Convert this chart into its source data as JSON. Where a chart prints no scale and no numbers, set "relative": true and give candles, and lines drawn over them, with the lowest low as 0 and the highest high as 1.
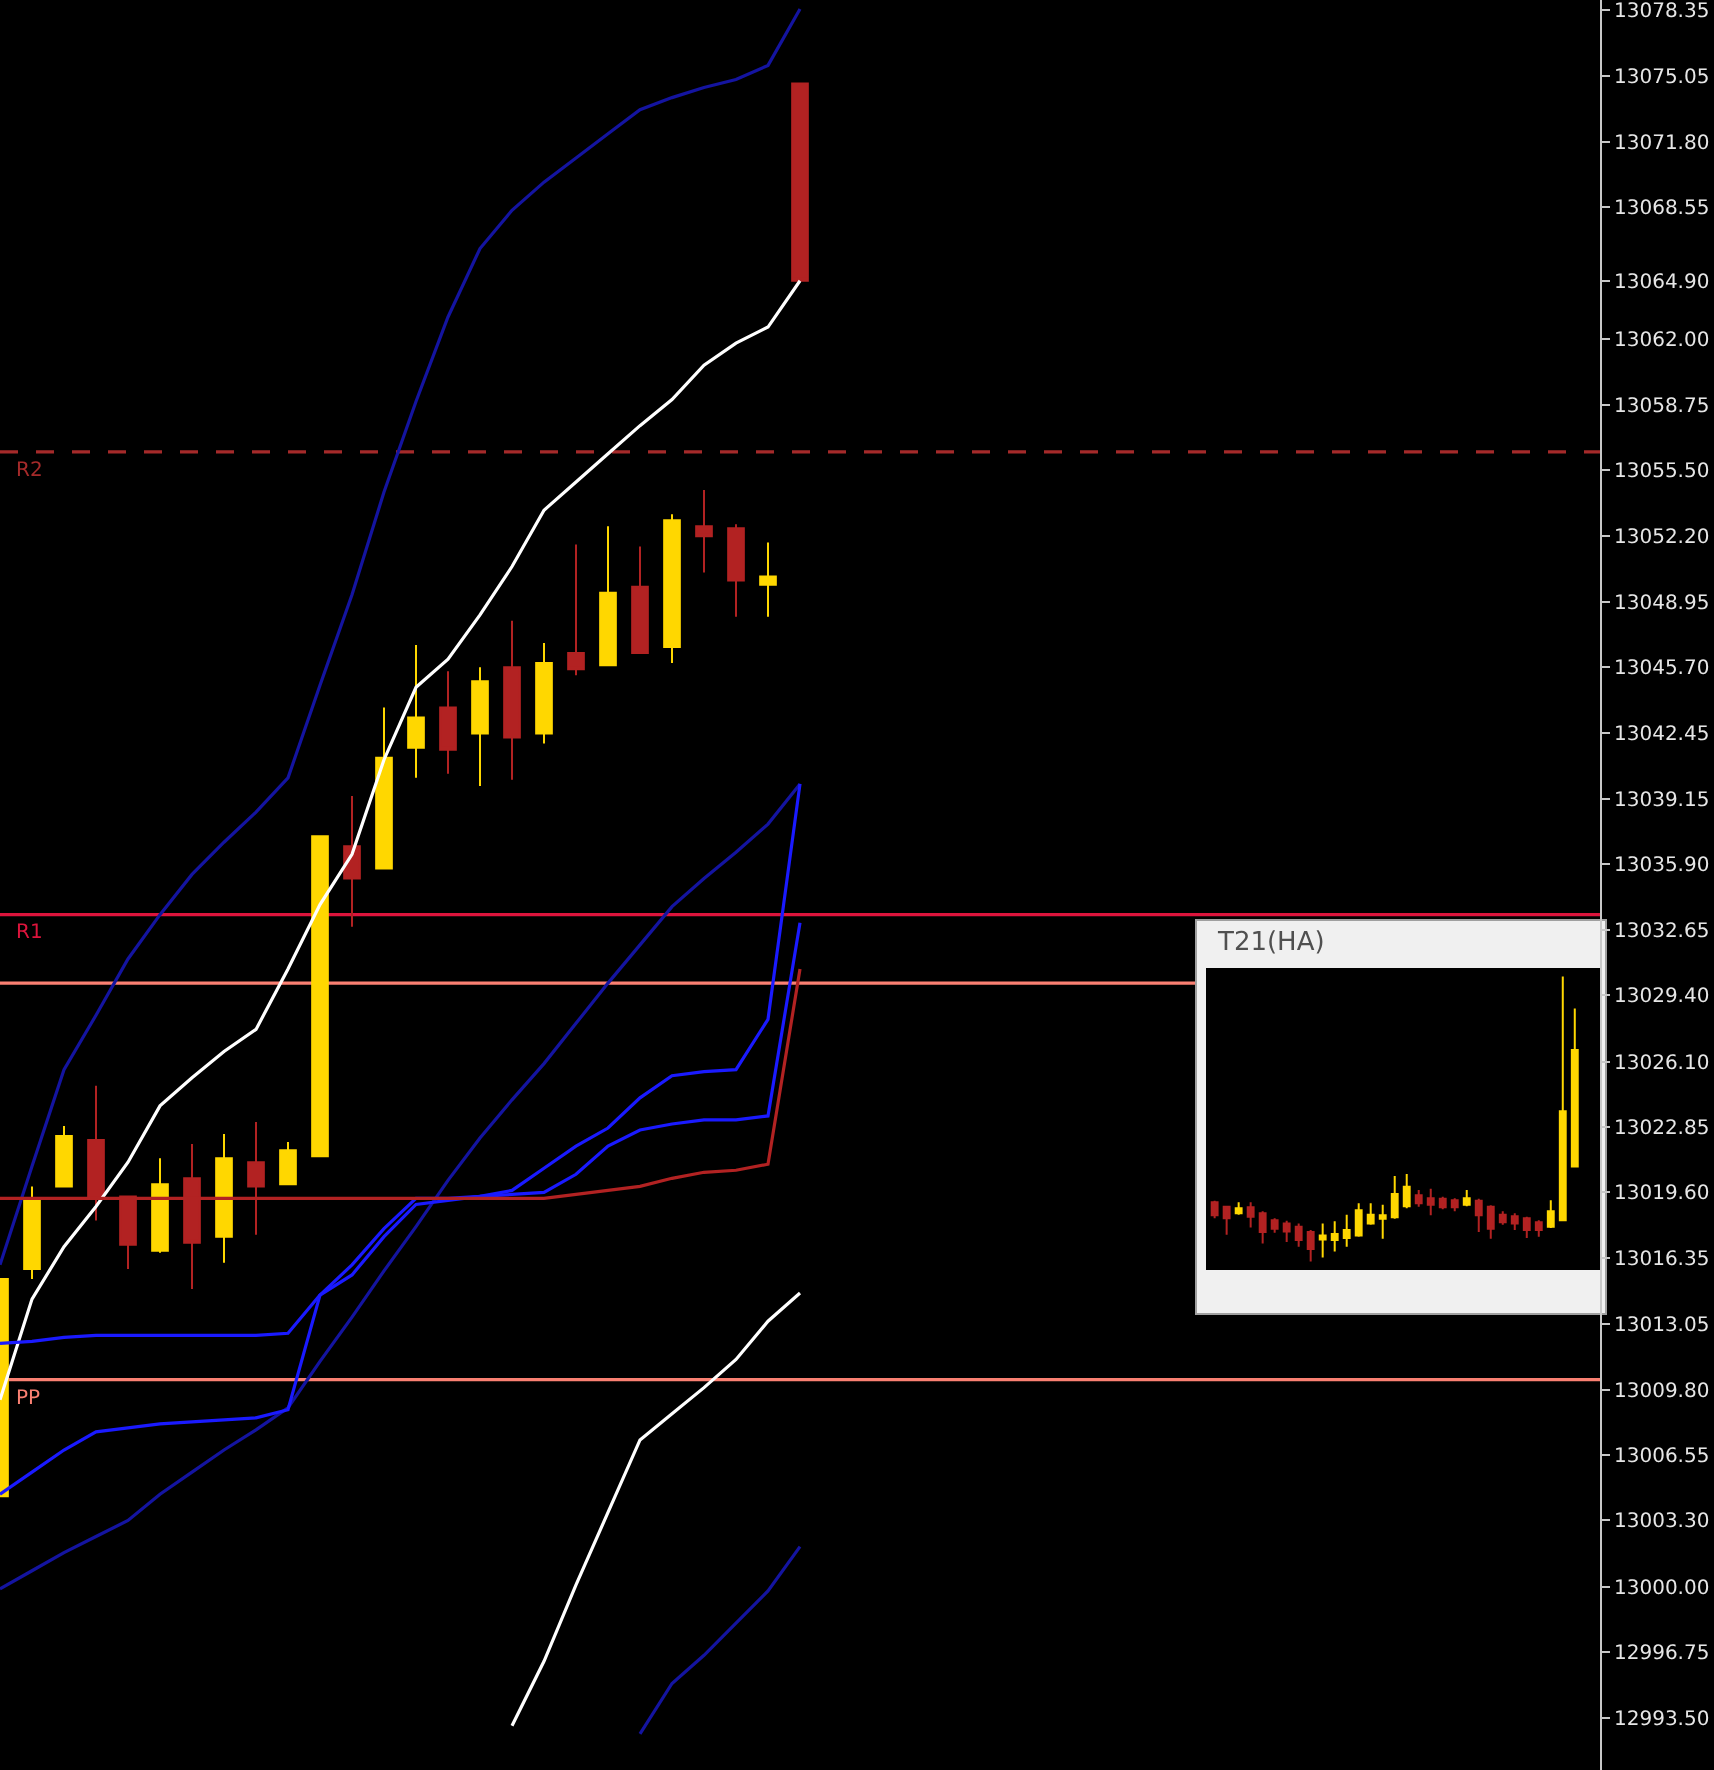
{
  "chart_data": [
    {
      "type": "candlestick",
      "categories": [
        null,
        null,
        null,
        null,
        null,
        null,
        null,
        null,
        null,
        null,
        null,
        null,
        null,
        null,
        null,
        null,
        null,
        null,
        null,
        null,
        null,
        null,
        null,
        null,
        null,
        null,
        null,
        null,
        null,
        null,
        null,
        null,
        null,
        null,
        null,
        null,
        null,
        null,
        null,
        null,
        null,
        null,
        null,
        null,
        null,
        null,
        null,
        null,
        null,
        null,
        null
      ],
      "ohlc": [
        [
          13004.5,
          13015.3,
          13004.5,
          13015.3
        ],
        [
          13015.8,
          13019.9,
          13015.3,
          13019.2
        ],
        [
          13019.9,
          13022.9,
          13019.9,
          13022.4
        ],
        [
          13022.2,
          13024.9,
          13018.2,
          13019.4
        ],
        [
          13019.4,
          13019.4,
          13015.8,
          13017.0
        ],
        [
          13016.7,
          13021.3,
          13016.6,
          13020.0
        ],
        [
          13020.3,
          13022.0,
          13014.8,
          13017.1
        ],
        [
          13017.4,
          13022.5,
          13016.1,
          13021.3
        ],
        [
          13021.1,
          13023.1,
          13017.5,
          13019.9
        ],
        [
          13020.0,
          13022.1,
          13020.0,
          13021.7
        ],
        [
          13021.4,
          13037.3,
          13021.4,
          13037.3
        ],
        [
          13036.8,
          13039.3,
          13032.8,
          13035.2
        ],
        [
          13035.7,
          13043.7,
          13035.7,
          13041.2
        ],
        [
          13041.7,
          13046.8,
          13040.2,
          13043.2
        ],
        [
          13043.7,
          13045.5,
          13040.4,
          13041.6
        ],
        [
          13042.4,
          13045.7,
          13039.8,
          13045.0
        ],
        [
          13045.7,
          13048.0,
          13040.1,
          13042.2
        ],
        [
          13042.4,
          13046.9,
          13041.9,
          13045.9
        ],
        [
          13046.4,
          13051.8,
          13045.3,
          13045.6
        ],
        [
          13045.8,
          13052.7,
          13045.8,
          13049.4
        ],
        [
          13049.7,
          13051.7,
          13046.4,
          13046.4
        ],
        [
          13046.7,
          13053.3,
          13045.9,
          13053.0
        ],
        [
          13052.7,
          13054.5,
          13050.4,
          13052.2
        ],
        [
          13052.6,
          13052.8,
          13048.2,
          13050.0
        ],
        [
          13049.8,
          13051.9,
          13048.2,
          13050.2
        ],
        [
          13074.7,
          13074.7,
          13064.9,
          13064.9
        ],
        null,
        null,
        null,
        null,
        null,
        null,
        null,
        null,
        null,
        null,
        null,
        null,
        null,
        null,
        null,
        null,
        null,
        null,
        null,
        null,
        null,
        null,
        null,
        null,
        null
      ],
      "colors": [
        "#ffd700",
        "#ffd700",
        "#ffd700",
        "#b22222",
        "#b22222",
        "#ffd700",
        "#b22222",
        "#ffd700",
        "#b22222",
        "#ffd700",
        "#ffd700",
        "#b22222",
        "#ffd700",
        "#ffd700",
        "#b22222",
        "#ffd700",
        "#b22222",
        "#ffd700",
        "#b22222",
        "#ffd700",
        "#b22222",
        "#ffd700",
        "#b22222",
        "#b22222",
        "#ffd700",
        "#b22222",
        null,
        null,
        null,
        null,
        null,
        null,
        null,
        null,
        null,
        null,
        null,
        null,
        null,
        null,
        null,
        null,
        null,
        null,
        null,
        null,
        null,
        null,
        null,
        null,
        null
      ],
      "series": [
        {
          "type": "line",
          "color": "#1414a0",
          "values": [
            13016.0,
            13020.9,
            13025.7,
            13028.4,
            13031.2,
            13033.4,
            13035.4,
            13037.0,
            13038.5,
            13040.2,
            13044.8,
            13049.3,
            13054.4,
            13058.9,
            13063.1,
            13066.5,
            13068.4,
            13069.8,
            13071.0,
            13072.2,
            13073.4,
            13074.0,
            13074.5,
            13074.9,
            13075.6,
            13078.4,
            null,
            null,
            null,
            null,
            null,
            null,
            null,
            null,
            null,
            null,
            null,
            null,
            null,
            null,
            null,
            null,
            null,
            null,
            null,
            null,
            null,
            null,
            null,
            null,
            null
          ]
        },
        {
          "type": "line",
          "color": "#1414a0",
          "values": [
            12999.9,
            13000.8,
            13001.7,
            13002.5,
            13003.3,
            13004.6,
            13005.7,
            13006.8,
            13007.8,
            13008.9,
            13011.2,
            13013.4,
            13015.7,
            13017.9,
            13020.2,
            13022.3,
            13024.2,
            13026.0,
            13028.0,
            13030.0,
            13031.9,
            13033.8,
            13035.2,
            13036.5,
            13037.9,
            13039.9,
            null,
            null,
            null,
            null,
            null,
            null,
            null,
            null,
            null,
            null,
            null,
            null,
            null,
            null,
            null,
            null,
            null,
            null,
            null,
            null,
            null,
            null,
            null,
            null,
            null
          ]
        },
        {
          "type": "line",
          "color": "#1414a0",
          "values": [
            null,
            null,
            null,
            null,
            null,
            null,
            null,
            null,
            null,
            null,
            null,
            null,
            null,
            null,
            null,
            null,
            null,
            null,
            null,
            null,
            12992.7,
            12995.2,
            12996.6,
            12998.2,
            12999.8,
            13002.0,
            null,
            null,
            null,
            null,
            null,
            null,
            null,
            null,
            null,
            null,
            null,
            null,
            null,
            null,
            null,
            null,
            null,
            null,
            null,
            null,
            null,
            null,
            null,
            null,
            null
          ]
        },
        {
          "type": "line",
          "color": "#ffffff",
          "values": [
            13009.3,
            13014.3,
            13016.9,
            13018.9,
            13021.1,
            13023.9,
            13025.3,
            13026.6,
            13027.7,
            13030.7,
            13033.9,
            13036.4,
            13041.1,
            13044.7,
            13046.1,
            13048.3,
            13050.7,
            13053.5,
            13054.9,
            13056.3,
            13057.7,
            13059.0,
            13060.7,
            13061.8,
            13062.6,
            13064.9,
            null,
            null,
            null,
            null,
            null,
            null,
            null,
            null,
            null,
            null,
            null,
            null,
            null,
            null,
            null,
            null,
            null,
            null,
            null,
            null,
            null,
            null,
            null,
            null,
            null
          ]
        },
        {
          "type": "line",
          "color": "#ffffff",
          "values": [
            null,
            null,
            null,
            null,
            null,
            null,
            null,
            null,
            null,
            null,
            null,
            null,
            null,
            null,
            null,
            null,
            12993.1,
            12996.3,
            13000.1,
            13003.7,
            13007.3,
            13008.6,
            13009.9,
            13011.3,
            13013.2,
            13014.6,
            null,
            null,
            null,
            null,
            null,
            null,
            null,
            null,
            null,
            null,
            null,
            null,
            null,
            null,
            null,
            null,
            null,
            null,
            null,
            null,
            null,
            null,
            null,
            null,
            null
          ]
        },
        {
          "type": "line",
          "color": "#1a1aff",
          "values": [
            13012.1,
            13012.2,
            13012.4,
            13012.5,
            13012.5,
            13012.5,
            13012.5,
            13012.5,
            13012.5,
            13012.6,
            13014.5,
            13015.5,
            13017.4,
            13019.0,
            13019.2,
            13019.4,
            13019.5,
            13019.6,
            13020.5,
            13021.9,
            13022.7,
            13023.0,
            13023.2,
            13023.2,
            13023.4,
            13033.0,
            null,
            null,
            null,
            null,
            null,
            null,
            null,
            null,
            null,
            null,
            null,
            null,
            null,
            null,
            null,
            null,
            null,
            null,
            null,
            null,
            null,
            null,
            null,
            null,
            null
          ]
        },
        {
          "type": "line",
          "color": "#1a1aff",
          "values": [
            13004.6,
            13005.7,
            13006.8,
            13007.7,
            13007.9,
            13008.1,
            13008.2,
            13008.3,
            13008.4,
            13008.8,
            13014.5,
            13016.0,
            13017.8,
            13019.3,
            13019.3,
            13019.4,
            13019.7,
            13020.8,
            13021.9,
            13022.8,
            13024.3,
            13025.4,
            13025.6,
            13025.7,
            13028.2,
            13039.9,
            null,
            null,
            null,
            null,
            null,
            null,
            null,
            null,
            null,
            null,
            null,
            null,
            null,
            null,
            null,
            null,
            null,
            null,
            null,
            null,
            null,
            null,
            null,
            null,
            null
          ]
        },
        {
          "type": "line",
          "color": "#b22222",
          "values": [
            13019.3,
            13019.3,
            13019.3,
            13019.3,
            13019.3,
            13019.3,
            13019.3,
            13019.3,
            13019.3,
            13019.3,
            13019.3,
            13019.3,
            13019.3,
            13019.3,
            13019.3,
            13019.3,
            13019.3,
            13019.3,
            13019.5,
            13019.7,
            13019.9,
            13020.3,
            13020.6,
            13020.7,
            13021.0,
            13030.7,
            null,
            null,
            null,
            null,
            null,
            null,
            null,
            null,
            null,
            null,
            null,
            null,
            null,
            null,
            null,
            null,
            null,
            null,
            null,
            null,
            null,
            null,
            null,
            null,
            null
          ]
        }
      ],
      "ref_lines": [
        {
          "axis": "y",
          "value": 13056.4,
          "label": "R2",
          "color": "#a52a2a",
          "line_style": "dashed"
        },
        {
          "axis": "y",
          "value": 13033.4,
          "label": "R1",
          "color": "#dc143c",
          "line_style": "solid"
        },
        {
          "axis": "y",
          "value": 13030.0,
          "label": null,
          "color": "#fa8072",
          "line_style": "solid"
        },
        {
          "axis": "y",
          "value": 13010.3,
          "label": "PP",
          "color": "#fa8072",
          "line_style": "solid"
        }
      ],
      "ylim": [
        12990.9,
        13078.85
      ],
      "yticks": [
        {
          "value": 13078.35,
          "label": "13078.35"
        },
        {
          "value": 13075.05,
          "label": "13075.05"
        },
        {
          "value": 13071.8,
          "label": "13071.80"
        },
        {
          "value": 13068.55,
          "label": "13068.55"
        },
        {
          "value": 13064.9,
          "label": "13064.90"
        },
        {
          "value": 13062.0,
          "label": "13062.00"
        },
        {
          "value": 13058.75,
          "label": "13058.75"
        },
        {
          "value": 13055.5,
          "label": "13055.50"
        },
        {
          "value": 13052.2,
          "label": "13052.20"
        },
        {
          "value": 13048.95,
          "label": "13048.95"
        },
        {
          "value": 13045.7,
          "label": "13045.70"
        },
        {
          "value": 13042.45,
          "label": "13042.45"
        },
        {
          "value": 13039.15,
          "label": "13039.15"
        },
        {
          "value": 13035.9,
          "label": "13035.90"
        },
        {
          "value": 13032.65,
          "label": "13032.65"
        },
        {
          "value": 13029.4,
          "label": "13029.40"
        },
        {
          "value": 13026.1,
          "label": "13026.10"
        },
        {
          "value": 13022.85,
          "label": "13022.85"
        },
        {
          "value": 13019.6,
          "label": "13019.60"
        },
        {
          "value": 13016.35,
          "label": "13016.35"
        },
        {
          "value": 13013.05,
          "label": "13013.05"
        },
        {
          "value": 13009.8,
          "label": "13009.80"
        },
        {
          "value": 13006.55,
          "label": "13006.55"
        },
        {
          "value": 13003.3,
          "label": "13003.30"
        },
        {
          "value": 13000.0,
          "label": "13000.00"
        },
        {
          "value": 12996.75,
          "label": "12996.75"
        },
        {
          "value": 12993.5,
          "label": "12993.50"
        }
      ],
      "tick_labels": "y"
    },
    {
      "type": "candlestick",
      "title": "T21(HA)",
      "relative": true,
      "tick_labels": false,
      "categories": [
        null,
        null,
        null,
        null,
        null,
        null,
        null,
        null,
        null,
        null,
        null,
        null,
        null,
        null,
        null,
        null,
        null,
        null,
        null,
        null,
        null,
        null,
        null,
        null,
        null,
        null,
        null,
        null,
        null,
        null,
        null
      ],
      "ohlc": [
        [
          0.208,
          0.213,
          0.152,
          0.162
        ],
        [
          0.192,
          0.192,
          0.094,
          0.152
        ],
        [
          0.169,
          0.208,
          0.164,
          0.187
        ],
        [
          0.19,
          0.208,
          0.119,
          0.157
        ],
        [
          0.169,
          0.176,
          0.063,
          0.103
        ],
        [
          0.145,
          0.152,
          0.101,
          0.115
        ],
        [
          0.133,
          0.143,
          0.068,
          0.105
        ],
        [
          0.122,
          0.133,
          0.052,
          0.075
        ],
        [
          0.103,
          0.11,
          0.0,
          0.044
        ],
        [
          0.077,
          0.133,
          0.014,
          0.091
        ],
        [
          0.075,
          0.141,
          0.035,
          0.096
        ],
        [
          0.082,
          0.164,
          0.052,
          0.11
        ],
        [
          0.091,
          0.204,
          0.087,
          0.18
        ],
        [
          0.133,
          0.204,
          0.129,
          0.164
        ],
        [
          0.15,
          0.199,
          0.08,
          0.162
        ],
        [
          0.155,
          0.3,
          0.15,
          0.237
        ],
        [
          0.194,
          0.307,
          0.187,
          0.262
        ],
        [
          0.232,
          0.251,
          0.192,
          0.204
        ],
        [
          0.222,
          0.255,
          0.162,
          0.199
        ],
        [
          0.22,
          0.227,
          0.183,
          0.19
        ],
        [
          0.215,
          0.222,
          0.176,
          0.19
        ],
        [
          0.199,
          0.251,
          0.194,
          0.222
        ],
        [
          0.213,
          0.22,
          0.103,
          0.162
        ],
        [
          0.192,
          0.197,
          0.08,
          0.115
        ],
        [
          0.164,
          0.176,
          0.129,
          0.138
        ],
        [
          0.159,
          0.169,
          0.11,
          0.133
        ],
        [
          0.152,
          0.157,
          0.082,
          0.11
        ],
        [
          0.138,
          0.145,
          0.087,
          0.11
        ],
        [
          0.122,
          0.215,
          0.117,
          0.176
        ],
        [
          0.145,
          1.0,
          0.145,
          0.527
        ],
        [
          0.333,
          0.888,
          0.333,
          0.742
        ]
      ],
      "colors": [
        "#b22222",
        "#b22222",
        "#ffd700",
        "#b22222",
        "#b22222",
        "#b22222",
        "#b22222",
        "#b22222",
        "#b22222",
        "#ffd700",
        "#ffd700",
        "#ffd700",
        "#ffd700",
        "#ffd700",
        "#ffd700",
        "#ffd700",
        "#ffd700",
        "#b22222",
        "#b22222",
        "#b22222",
        "#b22222",
        "#ffd700",
        "#b22222",
        "#b22222",
        "#b22222",
        "#b22222",
        "#b22222",
        "#b22222",
        "#ffd700",
        "#ffd700",
        "#ffd700"
      ]
    }
  ]
}
